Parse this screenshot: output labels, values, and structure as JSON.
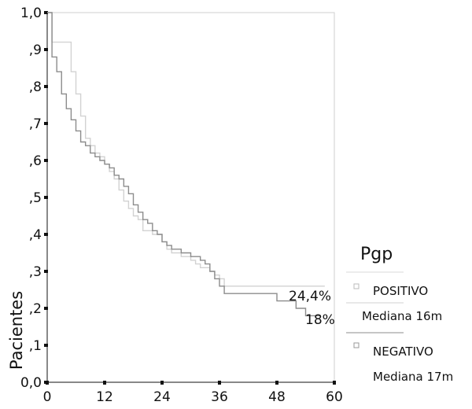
{
  "chart_data": {
    "type": "line",
    "style": "step",
    "ylabel": "Pacientes",
    "x_ticks": [
      "0",
      "12",
      "24",
      "36",
      "48",
      "60"
    ],
    "y_ticks": [
      "0,0",
      ",1",
      ",2",
      ",3",
      ",4",
      ",5",
      ",6",
      ",7",
      ",8",
      ",9",
      "1,0"
    ],
    "xlim": [
      0,
      60
    ],
    "ylim": [
      0,
      1
    ],
    "grid": false,
    "legend_placement": "right",
    "legend": {
      "title": "Pgp",
      "entries": [
        {
          "name": "POSITIVO",
          "detail": "Mediana 16m"
        },
        {
          "name": "NEGATIVO",
          "detail": "Mediana 17m"
        }
      ]
    },
    "annotations": [
      "24,4%",
      "18%"
    ],
    "series": [
      {
        "name": "POSITIVO",
        "color": "#d2d2d2",
        "x": [
          0,
          1,
          2,
          5,
          6,
          7,
          8,
          9,
          10,
          11,
          12,
          13,
          14,
          15,
          16,
          17,
          18,
          19,
          20,
          22,
          24,
          25,
          26,
          28,
          30,
          31,
          32,
          34,
          35,
          36,
          37,
          58
        ],
        "y": [
          1.0,
          0.92,
          0.92,
          0.84,
          0.78,
          0.72,
          0.66,
          0.64,
          0.62,
          0.61,
          0.59,
          0.57,
          0.55,
          0.52,
          0.49,
          0.47,
          0.45,
          0.44,
          0.41,
          0.4,
          0.38,
          0.36,
          0.35,
          0.34,
          0.33,
          0.32,
          0.31,
          0.3,
          0.29,
          0.28,
          0.26,
          0.26
        ]
      },
      {
        "name": "NEGATIVO",
        "color": "#8c8c8c",
        "x": [
          0,
          1,
          2,
          3,
          4,
          5,
          6,
          7,
          8,
          9,
          10,
          11,
          12,
          13,
          14,
          15,
          16,
          17,
          18,
          19,
          20,
          21,
          22,
          23,
          24,
          25,
          26,
          28,
          30,
          32,
          33,
          34,
          35,
          36,
          37,
          48,
          52,
          54,
          57
        ],
        "y": [
          1.0,
          0.88,
          0.84,
          0.78,
          0.74,
          0.71,
          0.68,
          0.65,
          0.64,
          0.62,
          0.61,
          0.6,
          0.59,
          0.58,
          0.56,
          0.55,
          0.53,
          0.51,
          0.48,
          0.46,
          0.44,
          0.43,
          0.41,
          0.4,
          0.38,
          0.37,
          0.36,
          0.35,
          0.34,
          0.33,
          0.32,
          0.3,
          0.28,
          0.26,
          0.24,
          0.22,
          0.2,
          0.18,
          0.18
        ]
      }
    ]
  }
}
